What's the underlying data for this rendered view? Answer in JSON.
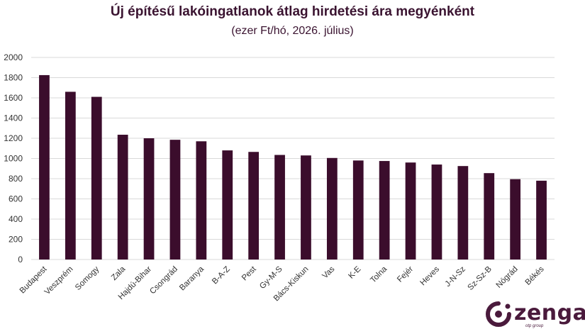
{
  "chart_data": {
    "type": "bar",
    "title": "Új építésű lakóingatlanok átlag hirdetési ára megyénként",
    "subtitle": "(ezer Ft/hó, 2026. július)",
    "xlabel": "",
    "ylabel": "",
    "ylim": [
      0,
      2000
    ],
    "yticks": [
      0,
      200,
      400,
      600,
      800,
      1000,
      1200,
      1400,
      1600,
      1800,
      2000
    ],
    "grid": true,
    "legend": "none",
    "bar_color": "#3b0d2c",
    "categories": [
      "Budapest",
      "Veszprém",
      "Somogy",
      "Zala",
      "Hajdú-Bihar",
      "Csongrád",
      "Baranya",
      "B-A-Z",
      "Pest",
      "Gy-M-S",
      "Bács-Kiskun",
      "Vas",
      "K-E",
      "Tolna",
      "Fejér",
      "Heves",
      "J-N-Sz",
      "Sz-Sz-B",
      "Nógrád",
      "Békés"
    ],
    "values": [
      1825,
      1660,
      1610,
      1235,
      1200,
      1185,
      1170,
      1080,
      1065,
      1035,
      1030,
      1005,
      980,
      975,
      960,
      940,
      925,
      855,
      795,
      780
    ]
  },
  "logo": {
    "name": "zenga",
    "sub": "otp group",
    "icon": "zenga-logo-icon",
    "color": "#4a1a3c"
  }
}
